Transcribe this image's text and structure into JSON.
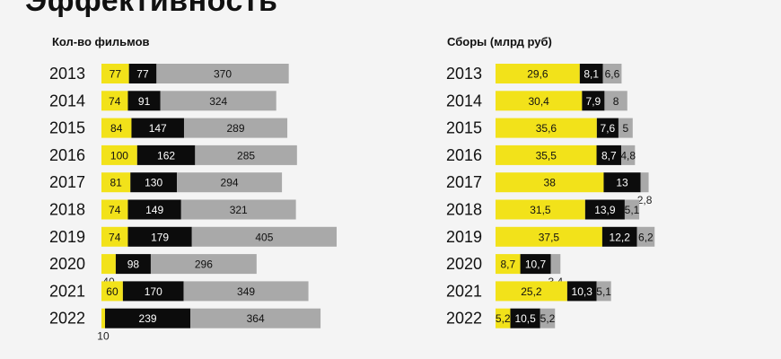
{
  "page_title": "Эффективность",
  "colors": {
    "yellow": "#f2e21a",
    "black": "#0c0c0c",
    "gray": "#a9a9a9"
  },
  "chart_data": [
    {
      "type": "bar",
      "stacked": true,
      "orientation": "horizontal",
      "title": "Кол-во фильмов",
      "categories": [
        "2013",
        "2014",
        "2015",
        "2016",
        "2017",
        "2018",
        "2019",
        "2020",
        "2021",
        "2022"
      ],
      "series": [
        {
          "color": "yellow",
          "values": [
            77,
            74,
            84,
            100,
            81,
            74,
            74,
            40,
            60,
            10
          ]
        },
        {
          "color": "black",
          "values": [
            77,
            91,
            147,
            162,
            130,
            149,
            179,
            98,
            170,
            239
          ]
        },
        {
          "color": "gray",
          "values": [
            370,
            324,
            289,
            285,
            294,
            321,
            405,
            296,
            349,
            364
          ]
        }
      ]
    },
    {
      "type": "bar",
      "stacked": true,
      "orientation": "horizontal",
      "title": "Сборы (млрд руб)",
      "categories": [
        "2013",
        "2014",
        "2015",
        "2016",
        "2017",
        "2018",
        "2019",
        "2020",
        "2021",
        "2022"
      ],
      "series": [
        {
          "color": "yellow",
          "values": [
            "29,6",
            "30,4",
            "35,6",
            "35,5",
            "38",
            "31,5",
            "37,5",
            "8,7",
            "25,2",
            "5,2"
          ]
        },
        {
          "color": "black",
          "values": [
            "8,1",
            "7,9",
            "7,6",
            "8,7",
            "13",
            "13,9",
            "12,2",
            "10,7",
            "10,3",
            "10,5"
          ]
        },
        {
          "color": "gray",
          "values": [
            "6,6",
            "8",
            "5",
            "4,8",
            "2,8",
            "5,1",
            "6,2",
            "3,4",
            "5,1",
            "5,2"
          ]
        }
      ]
    }
  ]
}
